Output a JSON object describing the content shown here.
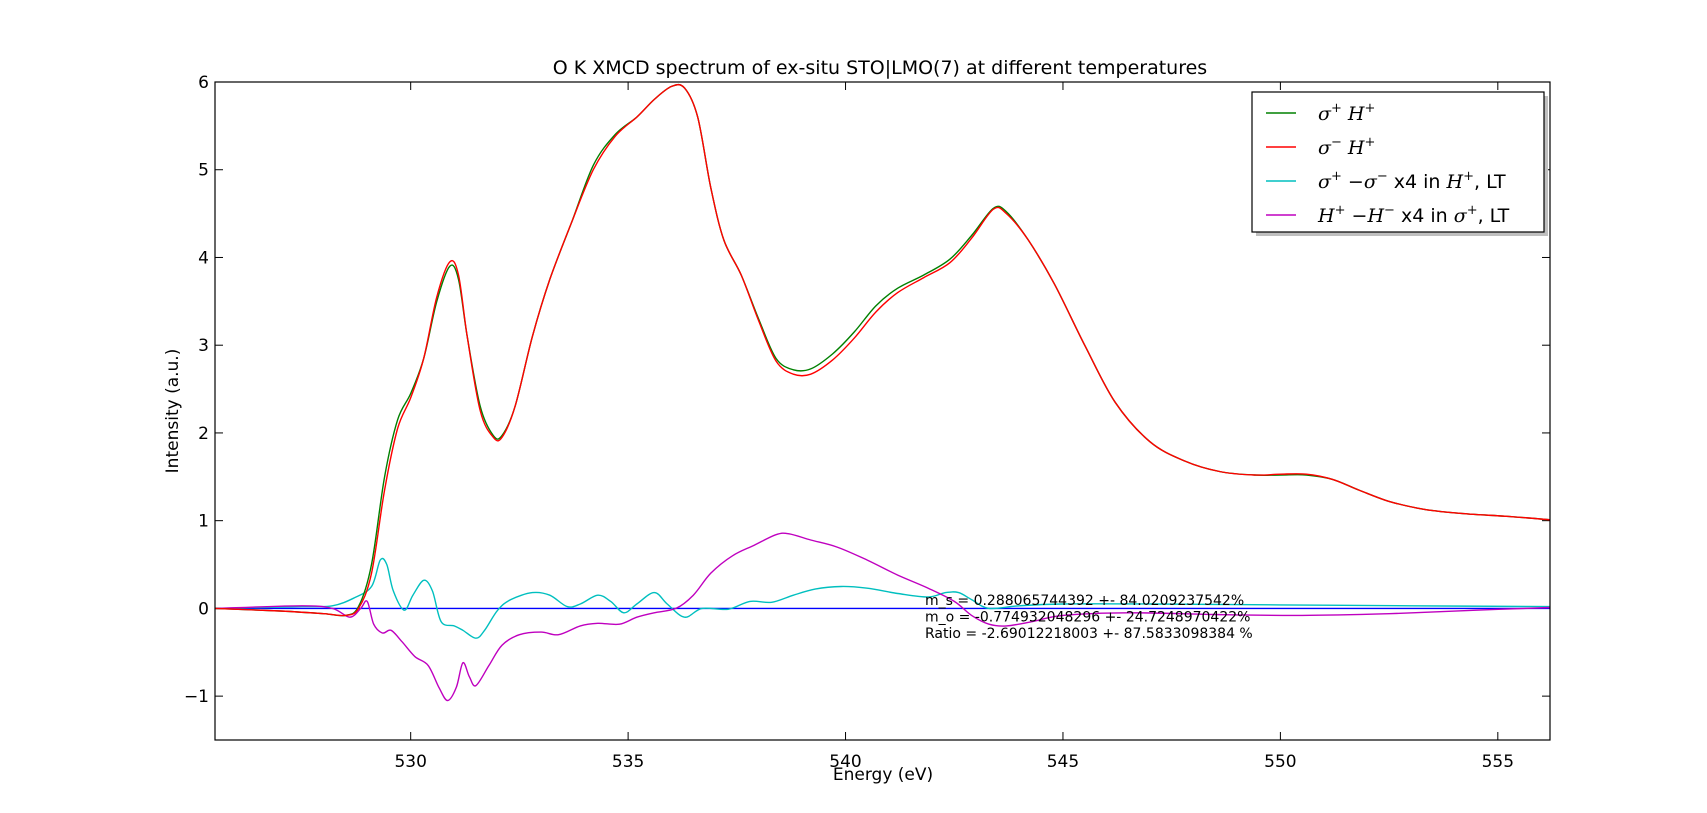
{
  "chart_data": {
    "type": "line",
    "title": "O K XMCD spectrum of ex-situ STO|LMO(7) at different temperatures",
    "xlabel": "Energy (eV)",
    "ylabel": "Intensity (a.u.)",
    "xlim": [
      525.5,
      556.2
    ],
    "ylim": [
      -1.5,
      6.0
    ],
    "xticks": [
      530,
      535,
      540,
      545,
      550,
      555
    ],
    "yticks": [
      -1,
      0,
      1,
      2,
      3,
      4,
      5,
      6
    ],
    "ytick_labels": [
      "−1",
      "0",
      "1",
      "2",
      "3",
      "4",
      "5",
      "6"
    ],
    "legend_position": "top-right",
    "series": [
      {
        "name": "σ⁺ H⁺",
        "color": "#008000",
        "points": [
          [
            525.5,
            0
          ],
          [
            527,
            -0.03
          ],
          [
            528,
            -0.06
          ],
          [
            528.5,
            -0.08
          ],
          [
            528.8,
            0.02
          ],
          [
            529.1,
            0.5
          ],
          [
            529.4,
            1.5
          ],
          [
            529.7,
            2.15
          ],
          [
            530.0,
            2.45
          ],
          [
            530.3,
            2.85
          ],
          [
            530.6,
            3.5
          ],
          [
            530.9,
            3.9
          ],
          [
            531.1,
            3.75
          ],
          [
            531.3,
            3.1
          ],
          [
            531.6,
            2.3
          ],
          [
            531.9,
            1.97
          ],
          [
            532.1,
            1.97
          ],
          [
            532.4,
            2.3
          ],
          [
            532.8,
            3.1
          ],
          [
            533.2,
            3.75
          ],
          [
            533.7,
            4.4
          ],
          [
            534.2,
            5.05
          ],
          [
            534.7,
            5.4
          ],
          [
            535.2,
            5.6
          ],
          [
            535.6,
            5.8
          ],
          [
            536.0,
            5.95
          ],
          [
            536.3,
            5.93
          ],
          [
            536.6,
            5.6
          ],
          [
            536.9,
            4.8
          ],
          [
            537.2,
            4.2
          ],
          [
            537.6,
            3.8
          ],
          [
            538.0,
            3.3
          ],
          [
            538.4,
            2.85
          ],
          [
            538.8,
            2.72
          ],
          [
            539.2,
            2.73
          ],
          [
            539.7,
            2.9
          ],
          [
            540.2,
            3.15
          ],
          [
            540.7,
            3.45
          ],
          [
            541.2,
            3.65
          ],
          [
            541.8,
            3.8
          ],
          [
            542.4,
            3.98
          ],
          [
            542.9,
            4.25
          ],
          [
            543.4,
            4.56
          ],
          [
            543.7,
            4.52
          ],
          [
            544.2,
            4.2
          ],
          [
            544.8,
            3.7
          ],
          [
            545.5,
            3.0
          ],
          [
            546.2,
            2.35
          ],
          [
            547.0,
            1.9
          ],
          [
            547.8,
            1.68
          ],
          [
            548.6,
            1.56
          ],
          [
            549.4,
            1.52
          ],
          [
            550.0,
            1.52
          ],
          [
            550.6,
            1.52
          ],
          [
            551.2,
            1.47
          ],
          [
            551.8,
            1.35
          ],
          [
            552.5,
            1.22
          ],
          [
            553.3,
            1.13
          ],
          [
            554.2,
            1.08
          ],
          [
            555.2,
            1.05
          ],
          [
            556.2,
            1.01
          ]
        ]
      },
      {
        "name": "σ⁻ H⁺",
        "color": "#ff0000",
        "points": [
          [
            525.5,
            0
          ],
          [
            527,
            -0.03
          ],
          [
            528,
            -0.06
          ],
          [
            528.5,
            -0.08
          ],
          [
            528.8,
            0.0
          ],
          [
            529.1,
            0.4
          ],
          [
            529.4,
            1.35
          ],
          [
            529.7,
            2.05
          ],
          [
            530.0,
            2.4
          ],
          [
            530.3,
            2.85
          ],
          [
            530.6,
            3.55
          ],
          [
            530.9,
            3.95
          ],
          [
            531.1,
            3.8
          ],
          [
            531.3,
            3.1
          ],
          [
            531.6,
            2.25
          ],
          [
            531.9,
            1.95
          ],
          [
            532.1,
            1.95
          ],
          [
            532.4,
            2.3
          ],
          [
            532.8,
            3.1
          ],
          [
            533.2,
            3.75
          ],
          [
            533.7,
            4.4
          ],
          [
            534.2,
            5.0
          ],
          [
            534.7,
            5.38
          ],
          [
            535.2,
            5.6
          ],
          [
            535.6,
            5.8
          ],
          [
            536.0,
            5.95
          ],
          [
            536.3,
            5.93
          ],
          [
            536.6,
            5.6
          ],
          [
            536.9,
            4.8
          ],
          [
            537.2,
            4.2
          ],
          [
            537.6,
            3.8
          ],
          [
            538.0,
            3.28
          ],
          [
            538.4,
            2.82
          ],
          [
            538.8,
            2.67
          ],
          [
            539.2,
            2.67
          ],
          [
            539.7,
            2.83
          ],
          [
            540.2,
            3.08
          ],
          [
            540.7,
            3.38
          ],
          [
            541.2,
            3.6
          ],
          [
            541.8,
            3.77
          ],
          [
            542.4,
            3.94
          ],
          [
            542.9,
            4.22
          ],
          [
            543.4,
            4.55
          ],
          [
            543.7,
            4.5
          ],
          [
            544.2,
            4.2
          ],
          [
            544.8,
            3.7
          ],
          [
            545.5,
            3.0
          ],
          [
            546.2,
            2.35
          ],
          [
            547.0,
            1.9
          ],
          [
            547.8,
            1.68
          ],
          [
            548.6,
            1.56
          ],
          [
            549.4,
            1.52
          ],
          [
            550.0,
            1.53
          ],
          [
            550.6,
            1.53
          ],
          [
            551.2,
            1.47
          ],
          [
            551.8,
            1.35
          ],
          [
            552.5,
            1.22
          ],
          [
            553.3,
            1.13
          ],
          [
            554.2,
            1.08
          ],
          [
            555.2,
            1.05
          ],
          [
            556.2,
            1.01
          ]
        ]
      },
      {
        "name": "σ⁺−σ⁻  x4 in H⁺, LT",
        "color": "#00bfbf",
        "points": [
          [
            525.5,
            0
          ],
          [
            527.5,
            0.02
          ],
          [
            528.2,
            0.03
          ],
          [
            528.7,
            0.12
          ],
          [
            529.1,
            0.25
          ],
          [
            529.3,
            0.55
          ],
          [
            529.45,
            0.5
          ],
          [
            529.6,
            0.2
          ],
          [
            529.85,
            -0.02
          ],
          [
            530.05,
            0.15
          ],
          [
            530.3,
            0.32
          ],
          [
            530.5,
            0.2
          ],
          [
            530.7,
            -0.15
          ],
          [
            531.0,
            -0.2
          ],
          [
            531.2,
            -0.25
          ],
          [
            531.5,
            -0.34
          ],
          [
            531.7,
            -0.25
          ],
          [
            532.0,
            -0.02
          ],
          [
            532.3,
            0.1
          ],
          [
            532.8,
            0.18
          ],
          [
            533.2,
            0.15
          ],
          [
            533.6,
            0.02
          ],
          [
            533.9,
            0.05
          ],
          [
            534.3,
            0.15
          ],
          [
            534.6,
            0.08
          ],
          [
            534.9,
            -0.05
          ],
          [
            535.2,
            0.05
          ],
          [
            535.6,
            0.18
          ],
          [
            535.9,
            0.05
          ],
          [
            536.3,
            -0.1
          ],
          [
            536.7,
            0.0
          ],
          [
            537.3,
            -0.01
          ],
          [
            537.8,
            0.08
          ],
          [
            538.3,
            0.07
          ],
          [
            538.8,
            0.15
          ],
          [
            539.3,
            0.22
          ],
          [
            539.9,
            0.25
          ],
          [
            540.5,
            0.23
          ],
          [
            541.2,
            0.17
          ],
          [
            541.9,
            0.13
          ],
          [
            542.3,
            0.18
          ],
          [
            542.6,
            0.18
          ],
          [
            542.9,
            0.1
          ],
          [
            543.3,
            0.0
          ],
          [
            544.0,
            0.03
          ],
          [
            545.0,
            0.05
          ],
          [
            547.0,
            0.05
          ],
          [
            550.0,
            0.04
          ],
          [
            553.0,
            0.03
          ],
          [
            556.2,
            0.02
          ]
        ]
      },
      {
        "name": "H⁺−H⁻  x4 in σ⁺, LT",
        "color": "#bf00bf",
        "points": [
          [
            525.5,
            0
          ],
          [
            527.5,
            0.03
          ],
          [
            528.2,
            0.0
          ],
          [
            528.6,
            -0.1
          ],
          [
            528.85,
            0.0
          ],
          [
            529.0,
            0.08
          ],
          [
            529.15,
            -0.18
          ],
          [
            529.35,
            -0.28
          ],
          [
            529.55,
            -0.25
          ],
          [
            529.8,
            -0.38
          ],
          [
            530.1,
            -0.55
          ],
          [
            530.4,
            -0.65
          ],
          [
            530.65,
            -0.9
          ],
          [
            530.85,
            -1.05
          ],
          [
            531.05,
            -0.9
          ],
          [
            531.2,
            -0.62
          ],
          [
            531.35,
            -0.78
          ],
          [
            531.5,
            -0.88
          ],
          [
            531.8,
            -0.65
          ],
          [
            532.1,
            -0.42
          ],
          [
            532.5,
            -0.3
          ],
          [
            533.0,
            -0.27
          ],
          [
            533.4,
            -0.3
          ],
          [
            533.9,
            -0.2
          ],
          [
            534.3,
            -0.17
          ],
          [
            534.8,
            -0.18
          ],
          [
            535.2,
            -0.1
          ],
          [
            535.6,
            -0.05
          ],
          [
            536.1,
            0.0
          ],
          [
            536.5,
            0.15
          ],
          [
            536.9,
            0.4
          ],
          [
            537.4,
            0.6
          ],
          [
            537.9,
            0.72
          ],
          [
            538.4,
            0.84
          ],
          [
            538.7,
            0.85
          ],
          [
            539.2,
            0.78
          ],
          [
            539.8,
            0.7
          ],
          [
            540.5,
            0.55
          ],
          [
            541.2,
            0.38
          ],
          [
            541.9,
            0.23
          ],
          [
            542.5,
            0.08
          ],
          [
            542.9,
            -0.08
          ],
          [
            543.3,
            -0.18
          ],
          [
            543.7,
            -0.2
          ],
          [
            544.3,
            -0.15
          ],
          [
            545.0,
            -0.08
          ],
          [
            546.5,
            -0.05
          ],
          [
            548.5,
            -0.07
          ],
          [
            550.5,
            -0.08
          ],
          [
            552.5,
            -0.06
          ],
          [
            554.5,
            -0.02
          ],
          [
            556.2,
            0.01
          ]
        ]
      },
      {
        "name": "baseline",
        "color": "#0000ff",
        "points": [
          [
            525.5,
            0
          ],
          [
            556.2,
            0
          ]
        ]
      }
    ],
    "legend": [
      {
        "base": "σ",
        "sup": "+",
        "base2": " H",
        "sup2": "+",
        "suffix": ""
      },
      {
        "base": "σ",
        "sup": "−",
        "base2": " H",
        "sup2": "+",
        "suffix": ""
      },
      {
        "base": "σ",
        "sup": "+",
        "mid": " −σ",
        "sup3": "−",
        "plain1": "  x4 in ",
        "base2": "H",
        "sup2": "+",
        "plain2": ", LT"
      },
      {
        "base": "H",
        "sup": "+",
        "mid": " −H",
        "sup3": "−",
        "plain1": "  x4 in ",
        "base2": "σ",
        "sup2": "+",
        "plain2": ", LT"
      }
    ],
    "annotations": [
      "m_s = 0.288065744392 +- 84.0209237542%",
      "m_o = -0.774932048296 +- 24.7248970422%",
      "Ratio = -2.69012218003 +- 87.5833098384 %"
    ]
  }
}
